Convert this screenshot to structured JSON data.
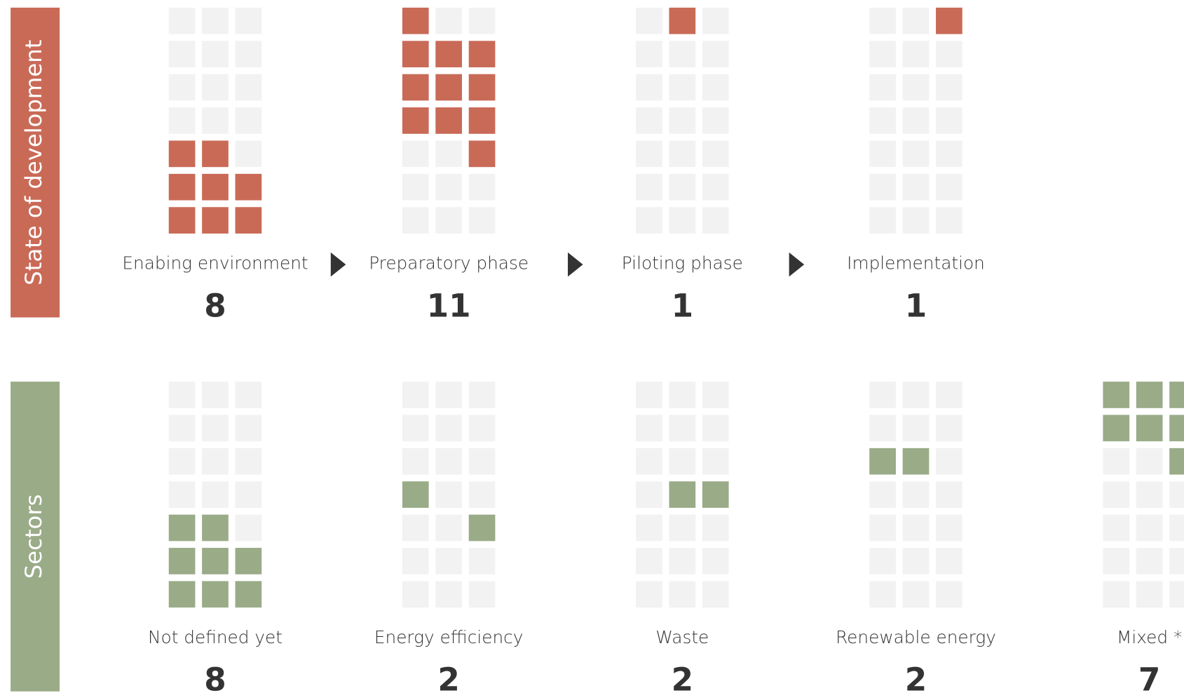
{
  "chart_data": [
    {
      "type": "waffle",
      "title": "State of development",
      "categories": [
        "Enabing environment",
        "Preparatory phase",
        "Piloting phase",
        "Implementation"
      ],
      "values": [
        8,
        11,
        1,
        1
      ],
      "color": "#c96a57"
    },
    {
      "type": "waffle",
      "title": "Sectors",
      "categories": [
        "Not defined yet",
        "Energy efficiency",
        "Waste",
        "Renewable energy",
        "Mixed *"
      ],
      "values": [
        8,
        2,
        2,
        2,
        7
      ],
      "color": "#9aab88"
    }
  ]
}
